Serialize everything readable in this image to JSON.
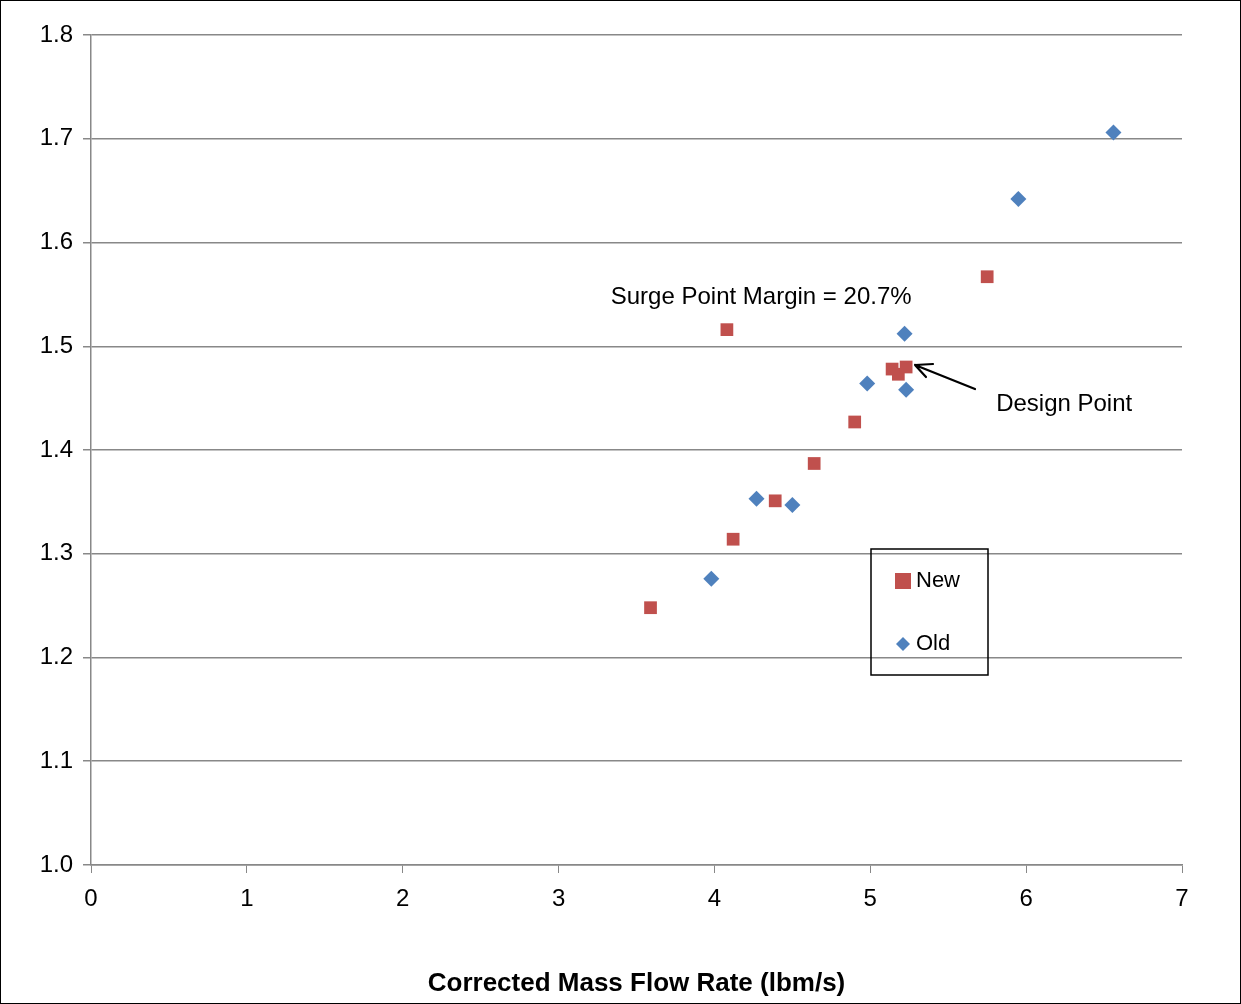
{
  "chart_data": {
    "type": "scatter",
    "xlabel": "Corrected Mass Flow Rate (lbm/s)",
    "xlim": [
      0,
      7
    ],
    "xticks": [
      0,
      1,
      2,
      3,
      4,
      5,
      6,
      7
    ],
    "ylim": [
      1.0,
      1.8
    ],
    "yticks": [
      {
        "value": 1.0,
        "label": "1.0"
      },
      1.1,
      1.2,
      1.3,
      1.4,
      1.5,
      1.6,
      1.7,
      1.8
    ],
    "grid": "y",
    "legend": "right",
    "series": [
      {
        "name": "New",
        "color": "#c0504d",
        "marker": "square",
        "x": [
          3.59,
          4.08,
          4.12,
          4.39,
          4.64,
          4.9,
          5.14,
          5.18,
          5.23,
          5.75
        ],
        "values": [
          1.248,
          1.516,
          1.314,
          1.351,
          1.387,
          1.427,
          1.478,
          1.473,
          1.48,
          1.567
        ]
      },
      {
        "name": "Old",
        "color": "#4f81bd",
        "marker": "diamond",
        "x": [
          3.98,
          4.27,
          4.5,
          4.98,
          5.22,
          5.23,
          5.95,
          6.56
        ],
        "values": [
          1.276,
          1.353,
          1.347,
          1.464,
          1.512,
          1.458,
          1.642,
          1.706
        ]
      }
    ],
    "annotations": [
      "Surge Point Margin = 20.7%",
      {
        "text": "Design Point",
        "x": 5.23,
        "y": 1.48
      }
    ]
  }
}
